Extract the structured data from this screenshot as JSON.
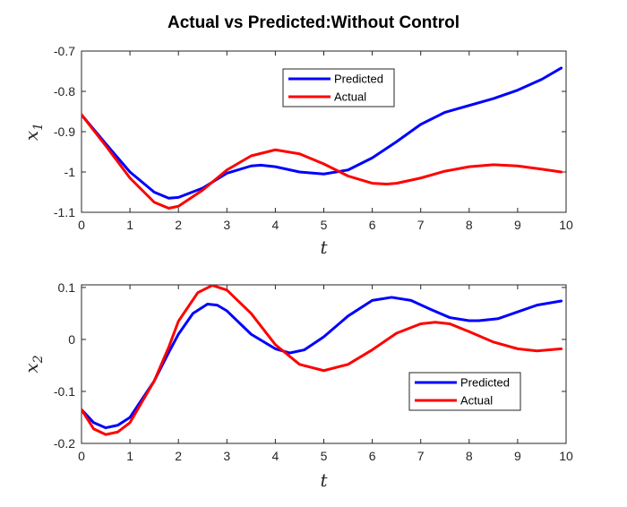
{
  "figure": {
    "title": "Actual vs Predicted:Without Control"
  },
  "chart_data": [
    {
      "type": "line",
      "xlabel": "t",
      "ylabel_base": "x",
      "ylabel_sub": "1",
      "xlim": [
        0,
        10
      ],
      "ylim": [
        -1.1,
        -0.7
      ],
      "xticks": [
        0,
        1,
        2,
        3,
        4,
        5,
        6,
        7,
        8,
        9,
        10
      ],
      "xtick_labels": [
        "0",
        "1",
        "2",
        "3",
        "4",
        "5",
        "6",
        "7",
        "8",
        "9",
        "10"
      ],
      "yticks": [
        -1.1,
        -1.0,
        -0.9,
        -0.8,
        -0.7
      ],
      "ytick_labels": [
        "-1.1",
        "-1",
        "-0.9",
        "-0.8",
        "-0.7"
      ],
      "grid": false,
      "legend_position": "top-center",
      "series": [
        {
          "name": "Predicted",
          "color": "#0000ff",
          "x": [
            0,
            0.5,
            1,
            1.5,
            1.8,
            2,
            2.5,
            3,
            3.5,
            3.7,
            4,
            4.5,
            5,
            5.5,
            6,
            6.5,
            7,
            7.5,
            8,
            8.5,
            9,
            9.5,
            9.9
          ],
          "y": [
            -0.858,
            -0.93,
            -1.0,
            -1.05,
            -1.065,
            -1.063,
            -1.04,
            -1.003,
            -0.985,
            -0.983,
            -0.987,
            -1.0,
            -1.005,
            -0.995,
            -0.965,
            -0.925,
            -0.882,
            -0.852,
            -0.835,
            -0.818,
            -0.797,
            -0.77,
            -0.742
          ]
        },
        {
          "name": "Actual",
          "color": "#ff0000",
          "x": [
            0,
            0.5,
            1,
            1.5,
            1.8,
            2,
            2.5,
            3,
            3.5,
            4,
            4.5,
            5,
            5.5,
            6,
            6.3,
            6.5,
            7,
            7.5,
            8,
            8.5,
            9,
            9.5,
            9.9
          ],
          "y": [
            -0.858,
            -0.935,
            -1.015,
            -1.075,
            -1.09,
            -1.085,
            -1.045,
            -0.995,
            -0.96,
            -0.945,
            -0.955,
            -0.98,
            -1.01,
            -1.028,
            -1.03,
            -1.028,
            -1.015,
            -0.998,
            -0.987,
            -0.982,
            -0.985,
            -0.993,
            -1.0
          ]
        }
      ]
    },
    {
      "type": "line",
      "xlabel": "t",
      "ylabel_base": "x",
      "ylabel_sub": "2",
      "xlim": [
        0,
        10
      ],
      "ylim": [
        -0.2,
        0.105
      ],
      "xticks": [
        0,
        1,
        2,
        3,
        4,
        5,
        6,
        7,
        8,
        9,
        10
      ],
      "xtick_labels": [
        "0",
        "1",
        "2",
        "3",
        "4",
        "5",
        "6",
        "7",
        "8",
        "9",
        "10"
      ],
      "yticks": [
        -0.2,
        -0.1,
        0,
        0.1
      ],
      "ytick_labels": [
        "-0.2",
        "-0.1",
        "0",
        "0.1"
      ],
      "grid": false,
      "legend_position": "lower-right",
      "series": [
        {
          "name": "Predicted",
          "color": "#0000ff",
          "x": [
            0,
            0.25,
            0.5,
            0.75,
            1,
            1.5,
            1.8,
            2,
            2.3,
            2.6,
            2.8,
            3,
            3.5,
            4,
            4.3,
            4.6,
            5,
            5.5,
            6,
            6.4,
            6.8,
            7.2,
            7.6,
            8,
            8.2,
            8.6,
            9,
            9.4,
            9.9
          ],
          "y": [
            -0.135,
            -0.16,
            -0.17,
            -0.165,
            -0.15,
            -0.08,
            -0.025,
            0.01,
            0.05,
            0.068,
            0.066,
            0.055,
            0.01,
            -0.018,
            -0.026,
            -0.02,
            0.005,
            0.045,
            0.075,
            0.081,
            0.075,
            0.058,
            0.042,
            0.036,
            0.036,
            0.04,
            0.053,
            0.066,
            0.074
          ]
        },
        {
          "name": "Actual",
          "color": "#ff0000",
          "x": [
            0,
            0.25,
            0.5,
            0.75,
            1,
            1.5,
            1.8,
            2,
            2.4,
            2.7,
            3,
            3.5,
            4,
            4.5,
            5,
            5.5,
            6,
            6.5,
            7,
            7.3,
            7.6,
            8,
            8.5,
            9,
            9.4,
            9.9
          ],
          "y": [
            -0.135,
            -0.172,
            -0.183,
            -0.178,
            -0.16,
            -0.08,
            -0.015,
            0.035,
            0.09,
            0.104,
            0.095,
            0.05,
            -0.01,
            -0.048,
            -0.06,
            -0.048,
            -0.02,
            0.012,
            0.03,
            0.033,
            0.03,
            0.015,
            -0.005,
            -0.018,
            -0.022,
            -0.018
          ]
        }
      ]
    }
  ]
}
